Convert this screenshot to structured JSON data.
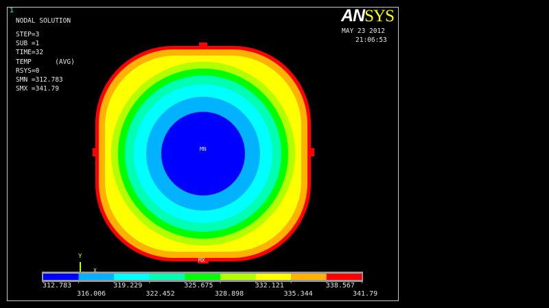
{
  "window_number": "1",
  "title": "NODAL SOLUTION",
  "info": [
    "STEP=3",
    "SUB =1",
    "TIME=32",
    "TEMP      (AVG)",
    "RSYS=0",
    "SMN =312.783",
    "SMX =341.79"
  ],
  "logo": {
    "part1": "AN",
    "part2": "SYS"
  },
  "date": "MAY 23 2012",
  "time": "21:06:53",
  "min_marker": "MN",
  "max_marker": "MX",
  "axis": {
    "y": "Y",
    "x": "X"
  },
  "legend": {
    "colors": [
      "#0000ff",
      "#00b2ff",
      "#00ffff",
      "#00ffb2",
      "#00ff00",
      "#b2ff00",
      "#ffff00",
      "#ffb200",
      "#ff0000"
    ],
    "labels_top": [
      "312.783",
      "319.229",
      "325.675",
      "332.121",
      "338.567"
    ],
    "labels_bottom": [
      "316.006",
      "322.452",
      "328.898",
      "335.344",
      "341.79"
    ]
  }
}
